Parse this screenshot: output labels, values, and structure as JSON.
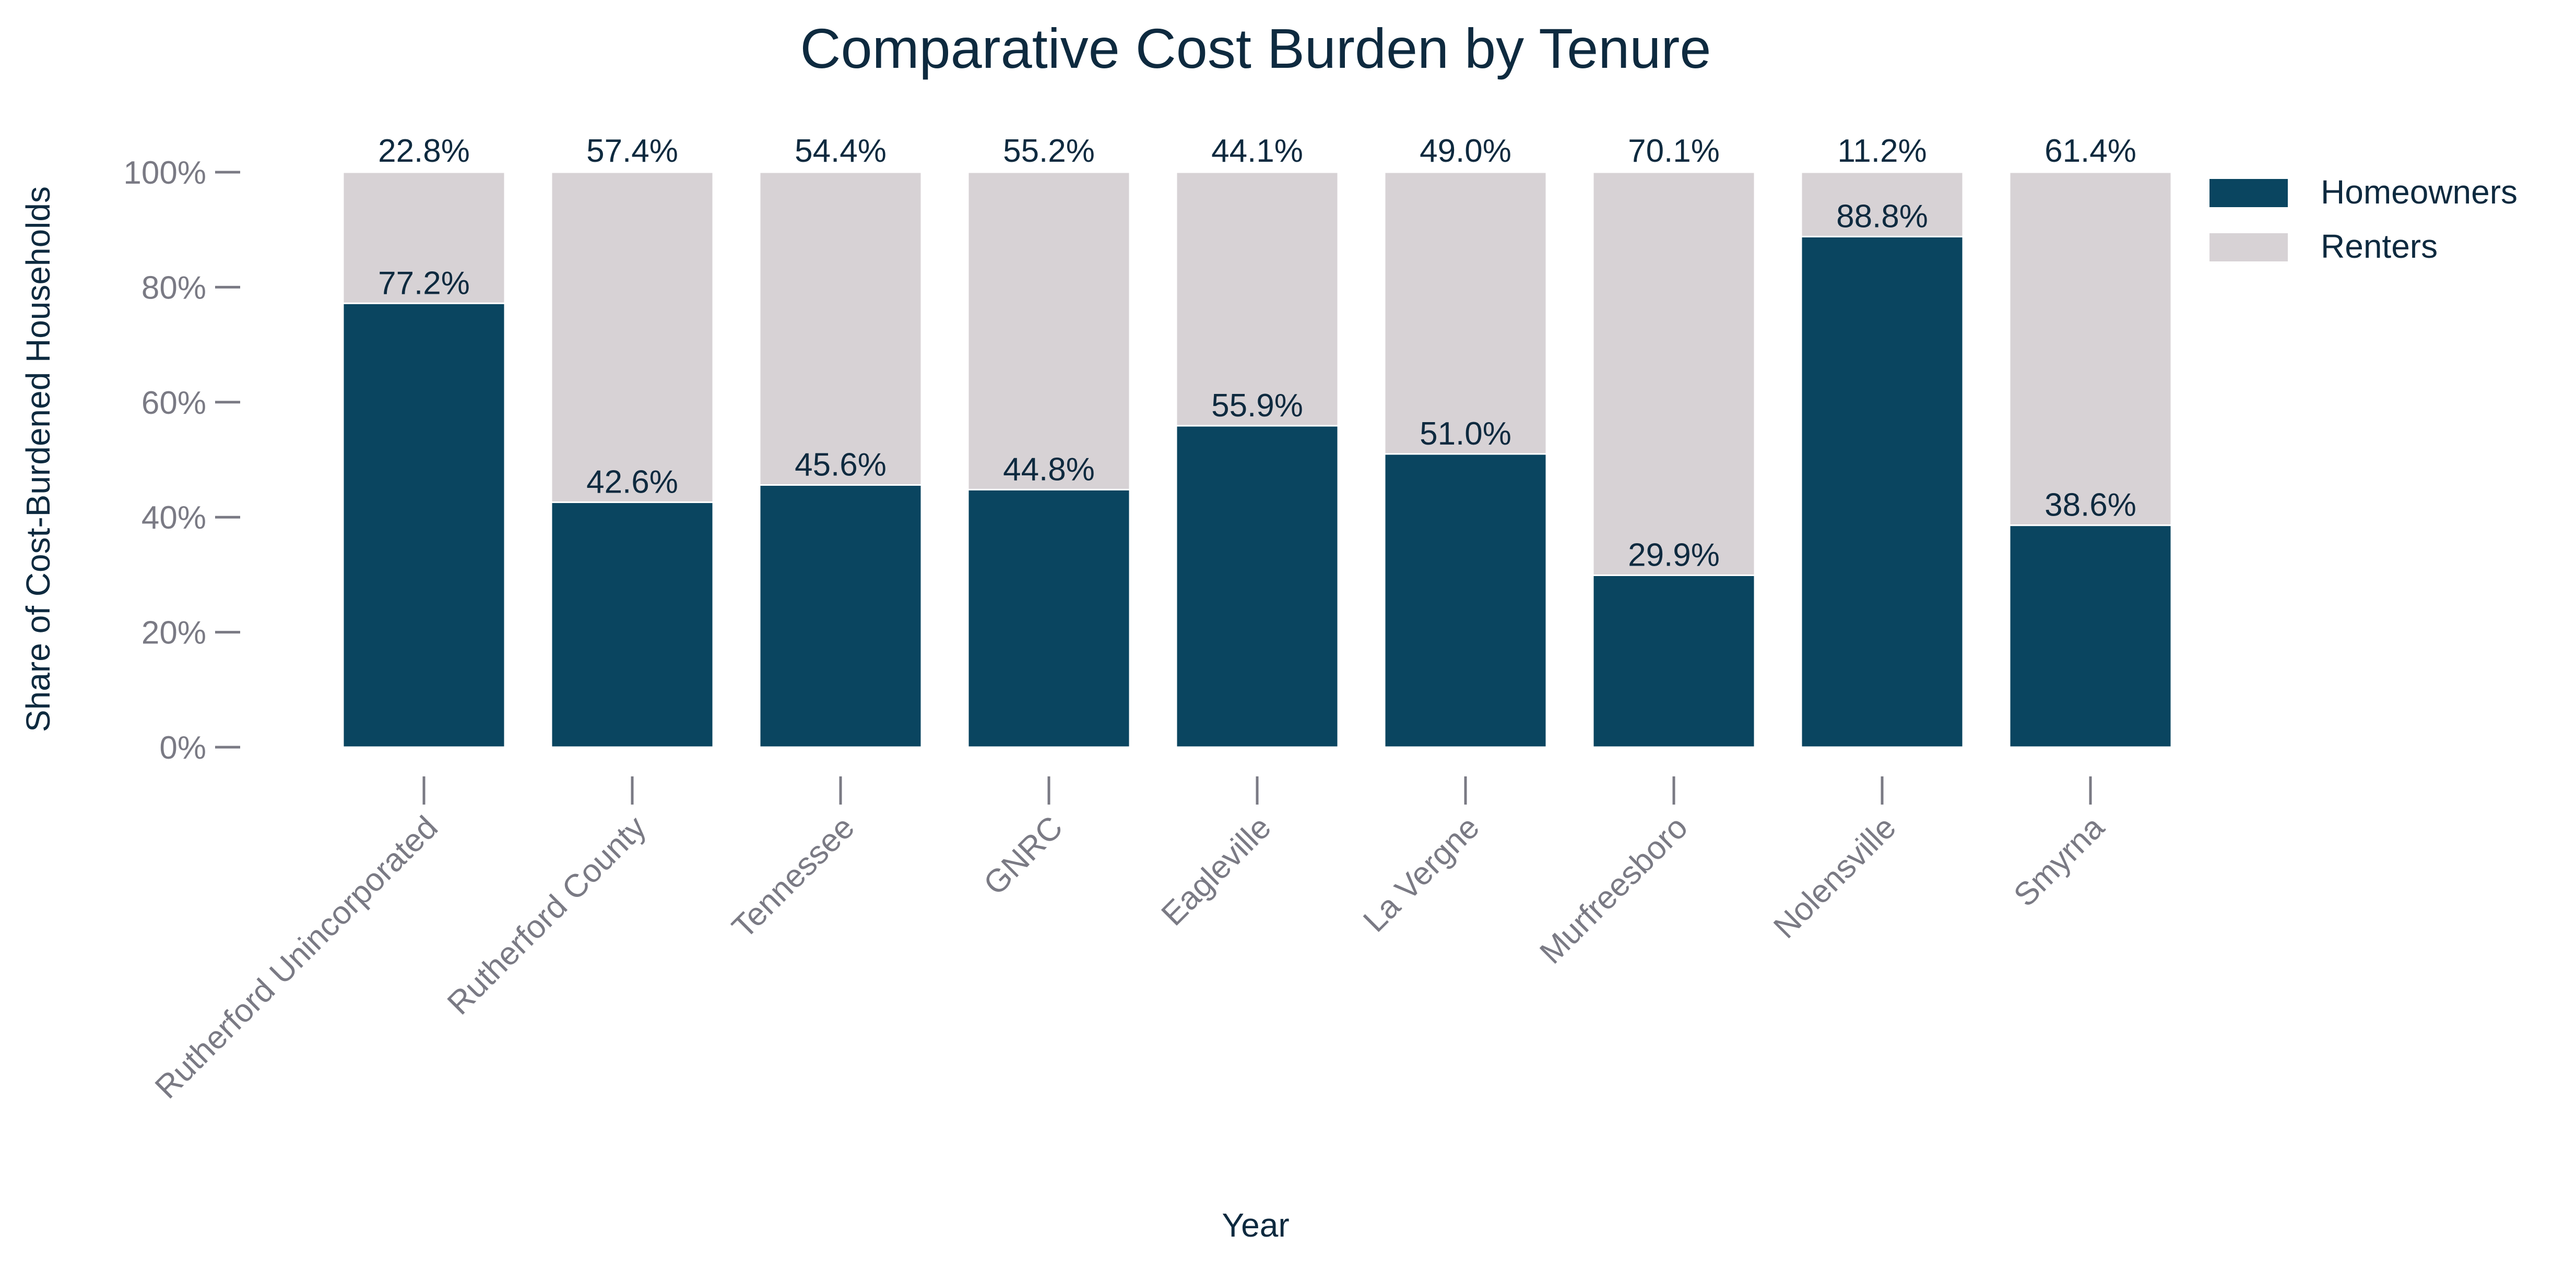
{
  "chart_data": {
    "type": "bar",
    "stacked": true,
    "title": "Comparative Cost Burden by Tenure",
    "xlabel": "Year",
    "ylabel": "Share of Cost-Burdened Households",
    "ylim": [
      0,
      100
    ],
    "yticks": [
      "0%",
      "20%",
      "40%",
      "60%",
      "80%",
      "100%"
    ],
    "grid": false,
    "legend_position": "top-right",
    "categories": [
      "Rutherford Unincorporated",
      "Rutherford County",
      "Tennessee",
      "GNRC",
      "Eagleville",
      "La Vergne",
      "Murfreesboro",
      "Nolensville",
      "Smyrna"
    ],
    "series": [
      {
        "name": "Homeowners",
        "color": "#0a4560",
        "values": [
          77.2,
          42.6,
          45.6,
          44.8,
          55.9,
          51.0,
          29.9,
          88.8,
          38.6
        ],
        "labels": [
          "77.2%",
          "42.6%",
          "45.6%",
          "44.8%",
          "55.9%",
          "51.0%",
          "29.9%",
          "88.8%",
          "38.6%"
        ]
      },
      {
        "name": "Renters",
        "color": "#d7d2d5",
        "values": [
          22.8,
          57.4,
          54.4,
          55.2,
          44.1,
          49.0,
          70.1,
          11.2,
          61.4
        ],
        "labels": [
          "22.8%",
          "57.4%",
          "54.4%",
          "55.2%",
          "44.1%",
          "49.0%",
          "70.1%",
          "11.2%",
          "61.4%"
        ]
      }
    ]
  }
}
